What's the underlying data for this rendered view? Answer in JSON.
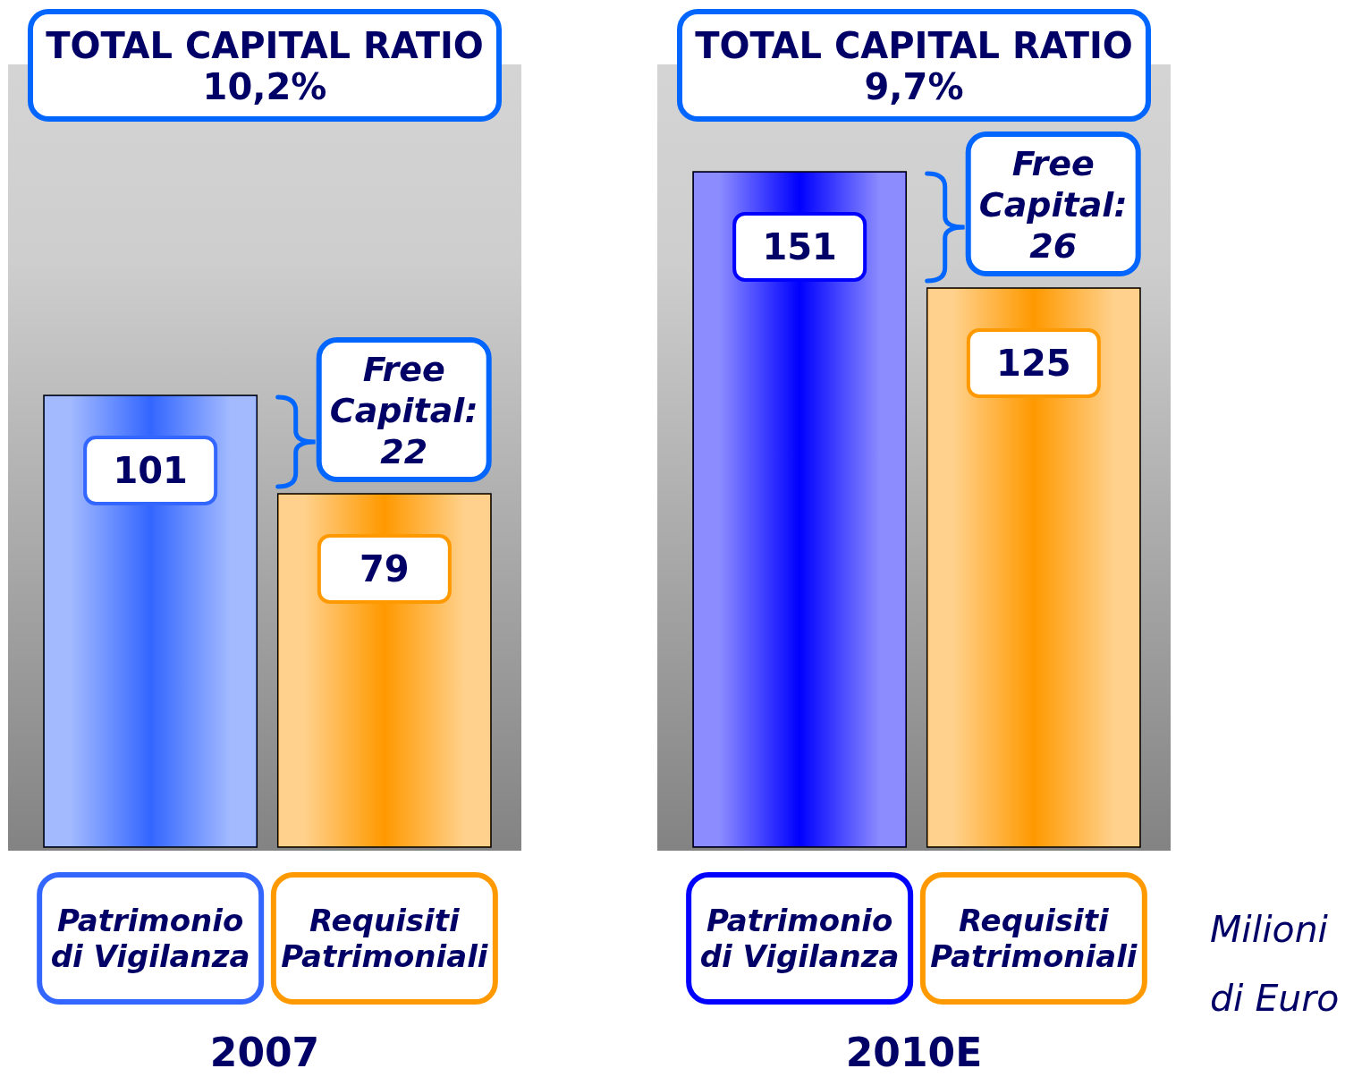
{
  "chart_data": [
    {
      "type": "bar",
      "title": "TOTAL CAPITAL RATIO",
      "subtitle": "10,2%",
      "categories": [
        "Patrimonio di Vigilanza",
        "Requisiti Patrimoniali"
      ],
      "values": [
        101,
        79
      ],
      "colors": [
        "#3366ff",
        "#ff9900"
      ],
      "data_labels": true,
      "ylim": [
        0,
        175
      ],
      "tick_labels": "x",
      "xlabel": "2007",
      "annotations": [
        "Free Capital: 22"
      ]
    },
    {
      "type": "bar",
      "title": "TOTAL CAPITAL RATIO",
      "subtitle": "9,7%",
      "categories": [
        "Patrimonio di Vigilanza",
        "Requisiti Patrimoniali"
      ],
      "values": [
        151,
        125
      ],
      "colors": [
        "#0000ff",
        "#ff9900"
      ],
      "data_labels": true,
      "ylim": [
        0,
        175
      ],
      "tick_labels": "x",
      "xlabel": "2010E",
      "annotations": [
        "Free Capital: 26",
        "Milioni di Euro"
      ]
    }
  ]
}
